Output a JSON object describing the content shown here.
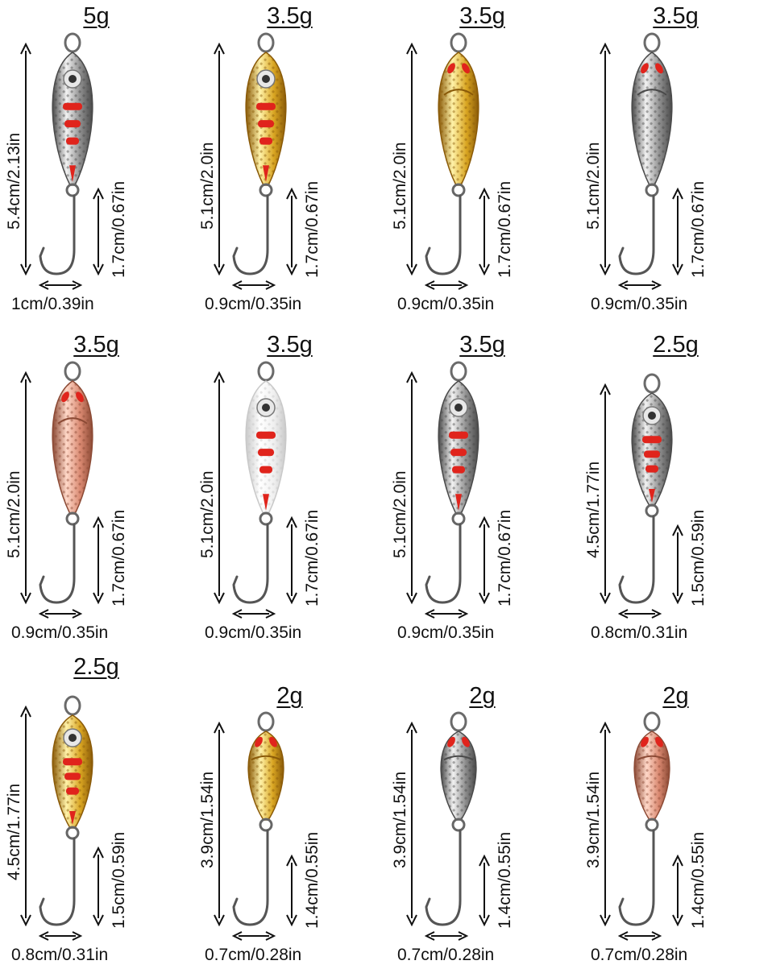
{
  "lures": [
    {
      "weight": "5g",
      "length": "5.4cm/2.13in",
      "hook": "1.7cm/0.67in",
      "width": "1cm/0.39in",
      "finish": "silver",
      "eye": true,
      "accent": "#e0241c"
    },
    {
      "weight": "3.5g",
      "length": "5.1cm/2.0in",
      "hook": "1.7cm/0.67in",
      "width": "0.9cm/0.35in",
      "finish": "gold",
      "eye": true,
      "accent": "#e0241c"
    },
    {
      "weight": "3.5g",
      "length": "5.1cm/2.0in",
      "hook": "1.7cm/0.67in",
      "width": "0.9cm/0.35in",
      "finish": "gold",
      "eye": false,
      "accent": "#e0241c"
    },
    {
      "weight": "3.5g",
      "length": "5.1cm/2.0in",
      "hook": "1.7cm/0.67in",
      "width": "0.9cm/0.35in",
      "finish": "silver",
      "eye": false,
      "accent": "#e0241c"
    },
    {
      "weight": "3.5g",
      "length": "5.1cm/2.0in",
      "hook": "1.7cm/0.67in",
      "width": "0.9cm/0.35in",
      "finish": "copper",
      "eye": false,
      "accent": "#e0241c"
    },
    {
      "weight": "3.5g",
      "length": "5.1cm/2.0in",
      "hook": "1.7cm/0.67in",
      "width": "0.9cm/0.35in",
      "finish": "white",
      "eye": true,
      "accent": "#e0241c"
    },
    {
      "weight": "3.5g",
      "length": "5.1cm/2.0in",
      "hook": "1.7cm/0.67in",
      "width": "0.9cm/0.35in",
      "finish": "silver",
      "eye": true,
      "accent": "#e0241c"
    },
    {
      "weight": "2.5g",
      "length": "4.5cm/1.77in",
      "hook": "1.5cm/0.59in",
      "width": "0.8cm/0.31in",
      "finish": "silver",
      "eye": true,
      "accent": "#e0241c"
    },
    {
      "weight": "2.5g",
      "length": "4.5cm/1.77in",
      "hook": "1.5cm/0.59in",
      "width": "0.8cm/0.31in",
      "finish": "gold",
      "eye": true,
      "accent": "#e0241c"
    },
    {
      "weight": "2g",
      "length": "3.9cm/1.54in",
      "hook": "1.4cm/0.55in",
      "width": "0.7cm/0.28in",
      "finish": "gold",
      "eye": false,
      "accent": "#e0241c"
    },
    {
      "weight": "2g",
      "length": "3.9cm/1.54in",
      "hook": "1.4cm/0.55in",
      "width": "0.7cm/0.28in",
      "finish": "silver",
      "eye": false,
      "accent": "#e0241c"
    },
    {
      "weight": "2g",
      "length": "3.9cm/1.54in",
      "hook": "1.4cm/0.55in",
      "width": "0.7cm/0.28in",
      "finish": "copper",
      "eye": false,
      "accent": "#e0241c"
    }
  ],
  "finish_colors": {
    "silver": [
      "#f2f2f2",
      "#8d8d8d",
      "#4a4a4a"
    ],
    "gold": [
      "#fff2a8",
      "#d9a521",
      "#8a5a08"
    ],
    "copper": [
      "#ffd8c8",
      "#d98870",
      "#8c4a35"
    ],
    "white": [
      "#ffffff",
      "#f0f0f0",
      "#c9c9c9"
    ]
  }
}
